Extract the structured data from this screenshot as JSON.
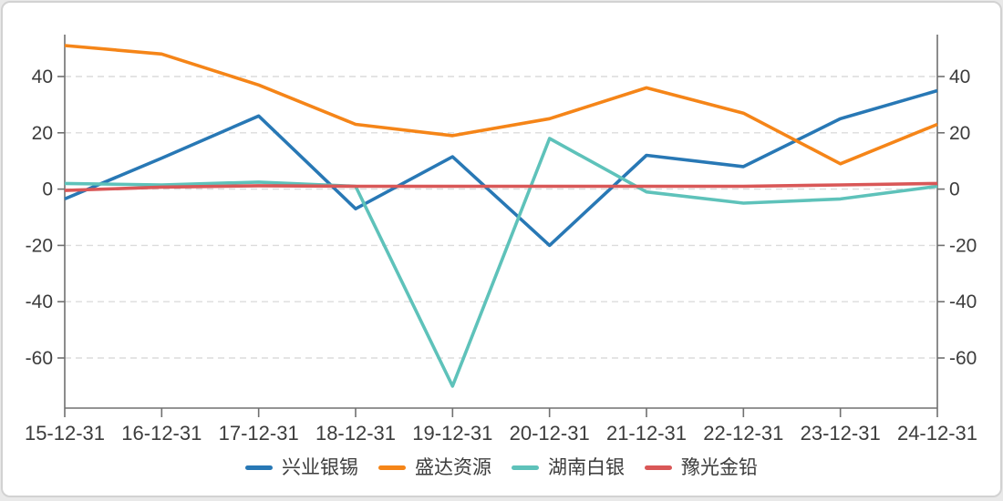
{
  "chart_data": {
    "type": "line",
    "categories": [
      "15-12-31",
      "16-12-31",
      "17-12-31",
      "18-12-31",
      "19-12-31",
      "20-12-31",
      "21-12-31",
      "22-12-31",
      "23-12-31",
      "24-12-31"
    ],
    "series": [
      {
        "name": "兴业银锡",
        "color": "#2878B5",
        "values": [
          -3.5,
          11,
          26,
          -7,
          11.5,
          -20,
          12,
          8,
          25,
          35
        ]
      },
      {
        "name": "盛达资源",
        "color": "#F58518",
        "values": [
          51,
          48,
          37,
          23,
          19,
          25,
          36,
          27,
          9,
          23
        ]
      },
      {
        "name": "湖南白银",
        "color": "#5EC2BA",
        "values": [
          2,
          1.5,
          2.5,
          1,
          -70,
          18,
          -1,
          -5,
          -3.5,
          1
        ]
      },
      {
        "name": "豫光金铅",
        "color": "#D95757",
        "values": [
          -0.5,
          0.7,
          1.2,
          1,
          1,
          1,
          1,
          1,
          1.5,
          2
        ]
      }
    ],
    "yticks_left": [
      40,
      20,
      0,
      -20,
      -40,
      -60
    ],
    "yticks_right": [
      40,
      20,
      0,
      -20,
      -40,
      -60
    ],
    "ylim": [
      -78,
      55
    ],
    "dual_axis": true,
    "grid": "dashed-horizontal",
    "legend_position": "bottom",
    "title": "",
    "xlabel": "",
    "ylabel": ""
  },
  "style": {
    "axis_color": "#707070",
    "grid_color": "#dcdcdc",
    "tick_text_color": "#3c3c3c",
    "card_border_color": "#d2d2d2",
    "plot_background": "#ffffff"
  }
}
